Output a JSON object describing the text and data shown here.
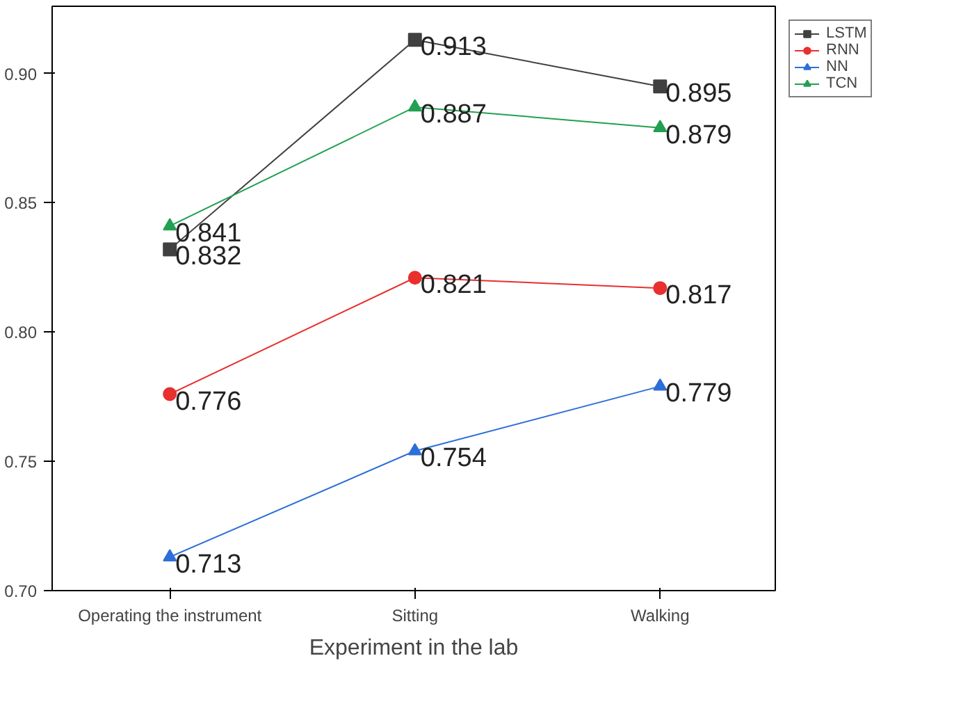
{
  "chart_data": {
    "type": "line",
    "xlabel": "Experiment in the lab",
    "categories": [
      "Operating the instrument",
      "Sitting",
      "Walking"
    ],
    "series": [
      {
        "name": "LSTM",
        "color": "#404040",
        "marker": "square",
        "values": [
          0.832,
          0.913,
          0.895
        ]
      },
      {
        "name": "RNN",
        "color": "#e8302f",
        "marker": "circle",
        "values": [
          0.776,
          0.821,
          0.817
        ]
      },
      {
        "name": "NN",
        "color": "#2d6fd8",
        "marker": "triangle",
        "values": [
          0.713,
          0.754,
          0.779
        ]
      },
      {
        "name": "TCN",
        "color": "#22a052",
        "marker": "triangle",
        "values": [
          0.841,
          0.887,
          0.879
        ]
      }
    ],
    "ylim": [
      0.7,
      0.926
    ],
    "yticks": [
      "0.70",
      "0.75",
      "0.80",
      "0.85",
      "0.90"
    ],
    "grid": false,
    "legend": "top right",
    "data_labels": true,
    "line_style": "solid"
  }
}
